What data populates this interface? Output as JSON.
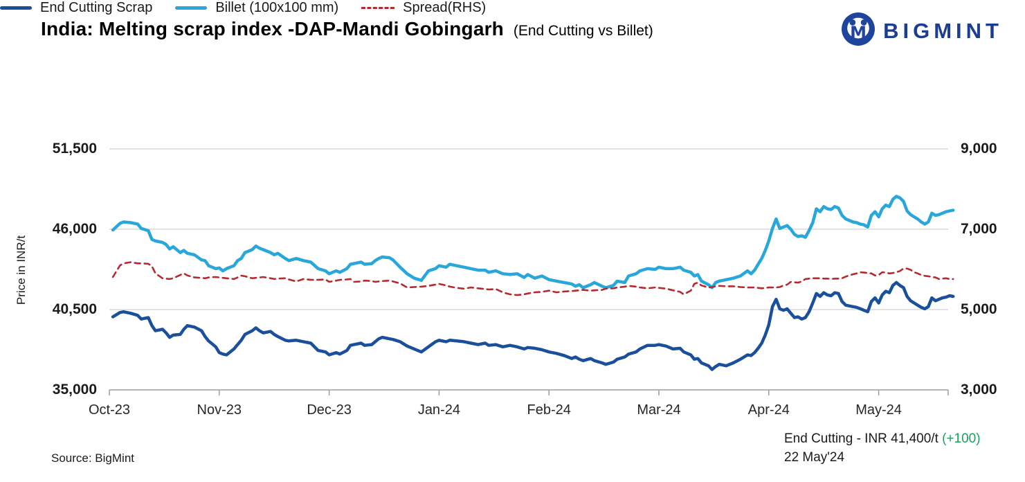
{
  "header": {
    "title": "India: Melting scrap index -DAP-Mandi Gobingarh",
    "subtitle": "(End Cutting vs Billet)",
    "brand": "BIGMINT",
    "brand_color": "#1c3d92"
  },
  "legend": [
    {
      "label": "End Cutting Scrap",
      "color": "#1a4f9c",
      "style": "solid"
    },
    {
      "label": "Billet (100x100 mm)",
      "color": "#29a7db",
      "style": "solid"
    },
    {
      "label": "Spread(RHS)",
      "color": "#b8292f",
      "style": "dashed"
    }
  ],
  "footer": {
    "source": "Source: BigMint",
    "annotation_prefix": "End Cutting - INR 41,400/t ",
    "annotation_change": "(+100)",
    "annotation_change_color": "#17a258",
    "annotation_date": "22 May'24"
  },
  "chart_data": {
    "type": "line",
    "title": "India: Melting scrap index -DAP-Mandi Gobingarh (End Cutting vs Billet)",
    "ylabel_left": "Price in INR/t",
    "grid": true,
    "legend_position": "top",
    "y_left_ticks": [
      "51,500",
      "46,000",
      "40,500",
      "35,000"
    ],
    "y_left_values": [
      51500,
      46000,
      40500,
      35000
    ],
    "y_right_ticks": [
      "9,000",
      "7,000",
      "5,000",
      "3,000"
    ],
    "y_right_values": [
      9000,
      7000,
      5000,
      3000
    ],
    "x_ticks": [
      "Oct-23",
      "Nov-23",
      "Dec-23",
      "Jan-24",
      "Feb-24",
      "Mar-24",
      "Apr-24",
      "May-24"
    ],
    "axis_ranges": {
      "left": [
        35000,
        51500
      ],
      "right": [
        3000,
        9000
      ]
    },
    "series_meta": [
      {
        "name": "End Cutting Scrap",
        "axis": "left",
        "color": "#1a4f9c",
        "dash": "",
        "width": 4.5
      },
      {
        "name": "Billet (100x100 mm)",
        "axis": "left",
        "color": "#29a7db",
        "dash": "",
        "width": 4.5
      },
      {
        "name": "Spread(RHS)",
        "axis": "right",
        "color": "#b8292f",
        "dash": "8 6",
        "width": 2.6
      }
    ],
    "columns": [
      "date",
      "end_cutting_scrap_inr_t",
      "billet_100x100_inr_t",
      "spread_rhs_inr_t"
    ],
    "points": [
      [
        "2023-10-02",
        40000,
        45950,
        5810
      ],
      [
        "2023-10-04",
        40300,
        46400,
        6100
      ],
      [
        "2023-10-05",
        40350,
        46500,
        6150
      ],
      [
        "2023-10-07",
        40250,
        46450,
        6180
      ],
      [
        "2023-10-09",
        40100,
        46350,
        6150
      ],
      [
        "2023-10-10",
        39850,
        46050,
        6150
      ],
      [
        "2023-10-12",
        39950,
        45900,
        6140
      ],
      [
        "2023-10-13",
        39400,
        45300,
        6080
      ],
      [
        "2023-10-14",
        39050,
        45200,
        5900
      ],
      [
        "2023-10-16",
        39150,
        45100,
        5780
      ],
      [
        "2023-10-17",
        38900,
        44950,
        5770
      ],
      [
        "2023-10-18",
        38600,
        44650,
        5760
      ],
      [
        "2023-10-19",
        38750,
        44800,
        5780
      ],
      [
        "2023-10-21",
        38800,
        44400,
        5860
      ],
      [
        "2023-10-22",
        39150,
        44550,
        5900
      ],
      [
        "2023-10-23",
        39400,
        44350,
        5850
      ],
      [
        "2023-10-25",
        39300,
        44250,
        5800
      ],
      [
        "2023-10-27",
        39050,
        43900,
        5790
      ],
      [
        "2023-10-28",
        38650,
        43850,
        5780
      ],
      [
        "2023-10-29",
        38350,
        43500,
        5800
      ],
      [
        "2023-10-31",
        37950,
        43300,
        5810
      ],
      [
        "2023-11-01",
        37550,
        43350,
        5800
      ],
      [
        "2023-11-02",
        37450,
        43150,
        5790
      ],
      [
        "2023-11-03",
        37400,
        43300,
        5780
      ],
      [
        "2023-11-05",
        37800,
        43500,
        5760
      ],
      [
        "2023-11-06",
        38100,
        43850,
        5800
      ],
      [
        "2023-11-07",
        38400,
        44000,
        5845
      ],
      [
        "2023-11-08",
        38800,
        44400,
        5830
      ],
      [
        "2023-11-10",
        39050,
        44600,
        5780
      ],
      [
        "2023-11-11",
        39250,
        44850,
        5790
      ],
      [
        "2023-11-12",
        39050,
        44700,
        5800
      ],
      [
        "2023-11-13",
        38900,
        44600,
        5810
      ],
      [
        "2023-11-15",
        39000,
        44400,
        5780
      ],
      [
        "2023-11-16",
        38800,
        44250,
        5760
      ],
      [
        "2023-11-17",
        38650,
        44350,
        5770
      ],
      [
        "2023-11-19",
        38400,
        44000,
        5780
      ],
      [
        "2023-11-20",
        38350,
        43850,
        5750
      ],
      [
        "2023-11-22",
        38400,
        44000,
        5700
      ],
      [
        "2023-11-24",
        38300,
        43850,
        5760
      ],
      [
        "2023-11-26",
        38200,
        43750,
        5740
      ],
      [
        "2023-11-28",
        37700,
        43300,
        5740
      ],
      [
        "2023-11-30",
        37600,
        43150,
        5750
      ],
      [
        "2023-12-01",
        37400,
        42950,
        5690
      ],
      [
        "2023-12-03",
        37550,
        43150,
        5720
      ],
      [
        "2023-12-04",
        37450,
        43050,
        5740
      ],
      [
        "2023-12-06",
        37700,
        43300,
        5750
      ],
      [
        "2023-12-07",
        38050,
        43600,
        5760
      ],
      [
        "2023-12-08",
        38100,
        43650,
        5690
      ],
      [
        "2023-12-10",
        38200,
        43750,
        5700
      ],
      [
        "2023-12-11",
        38050,
        43600,
        5720
      ],
      [
        "2023-12-13",
        38100,
        43650,
        5710
      ],
      [
        "2023-12-14",
        38300,
        43850,
        5690
      ],
      [
        "2023-12-15",
        38500,
        44000,
        5700
      ],
      [
        "2023-12-16",
        38600,
        44100,
        5710
      ],
      [
        "2023-12-18",
        38500,
        44050,
        5720
      ],
      [
        "2023-12-19",
        38450,
        43900,
        5700
      ],
      [
        "2023-12-21",
        38300,
        43400,
        5650
      ],
      [
        "2023-12-23",
        38000,
        42950,
        5550
      ],
      [
        "2023-12-25",
        37800,
        42650,
        5560
      ],
      [
        "2023-12-27",
        37600,
        42500,
        5570
      ],
      [
        "2023-12-29",
        37950,
        43150,
        5590
      ],
      [
        "2023-12-31",
        38300,
        43300,
        5620
      ],
      [
        "2024-01-01",
        38400,
        43500,
        5640
      ],
      [
        "2024-01-03",
        38300,
        43400,
        5600
      ],
      [
        "2024-01-04",
        38400,
        43600,
        5570
      ],
      [
        "2024-01-06",
        38350,
        43500,
        5540
      ],
      [
        "2024-01-08",
        38300,
        43400,
        5520
      ],
      [
        "2024-01-10",
        38200,
        43300,
        5550
      ],
      [
        "2024-01-12",
        38100,
        43200,
        5530
      ],
      [
        "2024-01-14",
        38200,
        43200,
        5510
      ],
      [
        "2024-01-15",
        38050,
        43050,
        5500
      ],
      [
        "2024-01-17",
        38100,
        43150,
        5510
      ],
      [
        "2024-01-19",
        37950,
        42950,
        5430
      ],
      [
        "2024-01-21",
        38050,
        42900,
        5380
      ],
      [
        "2024-01-23",
        37950,
        42950,
        5360
      ],
      [
        "2024-01-25",
        37800,
        42700,
        5380
      ],
      [
        "2024-01-26",
        37900,
        42900,
        5400
      ],
      [
        "2024-01-28",
        37850,
        42650,
        5430
      ],
      [
        "2024-01-30",
        37750,
        42800,
        5440
      ],
      [
        "2024-02-01",
        37600,
        42550,
        5470
      ],
      [
        "2024-02-03",
        37500,
        42450,
        5430
      ],
      [
        "2024-02-05",
        37350,
        42350,
        5450
      ],
      [
        "2024-02-07",
        37150,
        42250,
        5460
      ],
      [
        "2024-02-08",
        37250,
        42100,
        5470
      ],
      [
        "2024-02-09",
        37100,
        42200,
        5480
      ],
      [
        "2024-02-10",
        37000,
        42000,
        5490
      ],
      [
        "2024-02-12",
        37150,
        42200,
        5470
      ],
      [
        "2024-02-13",
        37000,
        42350,
        5480
      ],
      [
        "2024-02-15",
        36850,
        42100,
        5490
      ],
      [
        "2024-02-16",
        36750,
        42000,
        5520
      ],
      [
        "2024-02-18",
        36900,
        42150,
        5530
      ],
      [
        "2024-02-19",
        37100,
        42450,
        5550
      ],
      [
        "2024-02-21",
        37250,
        42350,
        5570
      ],
      [
        "2024-02-22",
        37450,
        42800,
        5590
      ],
      [
        "2024-02-24",
        37600,
        42950,
        5570
      ],
      [
        "2024-02-25",
        37800,
        43150,
        5550
      ],
      [
        "2024-02-27",
        38050,
        43300,
        5530
      ],
      [
        "2024-02-29",
        38050,
        43250,
        5550
      ],
      [
        "2024-03-01",
        38100,
        43400,
        5540
      ],
      [
        "2024-03-03",
        38000,
        43300,
        5520
      ],
      [
        "2024-03-05",
        37800,
        43300,
        5480
      ],
      [
        "2024-03-07",
        37850,
        43400,
        5440
      ],
      [
        "2024-03-08",
        37600,
        43200,
        5380
      ],
      [
        "2024-03-10",
        37400,
        43050,
        5470
      ],
      [
        "2024-03-11",
        37100,
        42800,
        5640
      ],
      [
        "2024-03-12",
        37150,
        42900,
        5670
      ],
      [
        "2024-03-13",
        36850,
        42450,
        5600
      ],
      [
        "2024-03-15",
        36650,
        42200,
        5550
      ],
      [
        "2024-03-16",
        36400,
        42000,
        5560
      ],
      [
        "2024-03-17",
        36600,
        42350,
        5580
      ],
      [
        "2024-03-18",
        36750,
        42450,
        5590
      ],
      [
        "2024-03-20",
        36650,
        42550,
        5580
      ],
      [
        "2024-03-22",
        36850,
        42650,
        5580
      ],
      [
        "2024-03-24",
        37100,
        42800,
        5560
      ],
      [
        "2024-03-26",
        37400,
        43150,
        5550
      ],
      [
        "2024-03-27",
        37350,
        42950,
        5550
      ],
      [
        "2024-03-28",
        37550,
        43200,
        5550
      ],
      [
        "2024-03-29",
        37850,
        43600,
        5540
      ],
      [
        "2024-03-30",
        38200,
        44000,
        5530
      ],
      [
        "2024-03-31",
        38750,
        44550,
        5540
      ],
      [
        "2024-04-01",
        39450,
        45200,
        5550
      ],
      [
        "2024-04-02",
        40700,
        46050,
        5550
      ],
      [
        "2024-04-03",
        41200,
        46700,
        5550
      ],
      [
        "2024-04-04",
        40550,
        46050,
        5560
      ],
      [
        "2024-04-05",
        40450,
        46150,
        5600
      ],
      [
        "2024-04-06",
        40550,
        46250,
        5620
      ],
      [
        "2024-04-07",
        40250,
        46000,
        5690
      ],
      [
        "2024-04-08",
        39950,
        45650,
        5680
      ],
      [
        "2024-04-09",
        40000,
        45500,
        5670
      ],
      [
        "2024-04-10",
        39850,
        45550,
        5700
      ],
      [
        "2024-04-11",
        39950,
        45450,
        5760
      ],
      [
        "2024-04-12",
        40350,
        45900,
        5770
      ],
      [
        "2024-04-13",
        40950,
        46450,
        5780
      ],
      [
        "2024-04-14",
        41600,
        47400,
        5780
      ],
      [
        "2024-04-15",
        41400,
        47200,
        5780
      ],
      [
        "2024-04-16",
        41650,
        47550,
        5770
      ],
      [
        "2024-04-17",
        41500,
        47400,
        5770
      ],
      [
        "2024-04-18",
        41450,
        47350,
        5760
      ],
      [
        "2024-04-19",
        41650,
        47550,
        5770
      ],
      [
        "2024-04-20",
        41600,
        47450,
        5770
      ],
      [
        "2024-04-21",
        41050,
        46950,
        5780
      ],
      [
        "2024-04-22",
        40800,
        46700,
        5820
      ],
      [
        "2024-04-24",
        40700,
        46500,
        5880
      ],
      [
        "2024-04-25",
        40650,
        46450,
        5900
      ],
      [
        "2024-04-26",
        40550,
        46350,
        5930
      ],
      [
        "2024-04-27",
        40450,
        46300,
        5920
      ],
      [
        "2024-04-28",
        40350,
        46150,
        5910
      ],
      [
        "2024-04-29",
        41050,
        46950,
        5900
      ],
      [
        "2024-04-30",
        41300,
        47200,
        5850
      ],
      [
        "2024-05-01",
        40950,
        46850,
        5860
      ],
      [
        "2024-05-02",
        41500,
        47400,
        5930
      ],
      [
        "2024-05-03",
        41750,
        47650,
        5920
      ],
      [
        "2024-05-04",
        41650,
        47550,
        5900
      ],
      [
        "2024-05-05",
        42150,
        48050,
        5910
      ],
      [
        "2024-05-06",
        42350,
        48250,
        5930
      ],
      [
        "2024-05-07",
        42150,
        48150,
        5960
      ],
      [
        "2024-05-08",
        42000,
        47900,
        6020
      ],
      [
        "2024-05-09",
        41400,
        47250,
        6020
      ],
      [
        "2024-05-10",
        41100,
        47000,
        5990
      ],
      [
        "2024-05-11",
        40950,
        46850,
        5930
      ],
      [
        "2024-05-12",
        40800,
        46700,
        5900
      ],
      [
        "2024-05-13",
        40650,
        46500,
        5860
      ],
      [
        "2024-05-14",
        40550,
        46350,
        5840
      ],
      [
        "2024-05-15",
        40700,
        46500,
        5830
      ],
      [
        "2024-05-16",
        41300,
        47100,
        5810
      ],
      [
        "2024-05-17",
        41100,
        46950,
        5800
      ],
      [
        "2024-05-18",
        41200,
        47000,
        5760
      ],
      [
        "2024-05-19",
        41300,
        47100,
        5770
      ],
      [
        "2024-05-20",
        41350,
        47200,
        5780
      ],
      [
        "2024-05-21",
        41450,
        47250,
        5760
      ],
      [
        "2024-05-22",
        41400,
        47300,
        5760
      ]
    ]
  }
}
